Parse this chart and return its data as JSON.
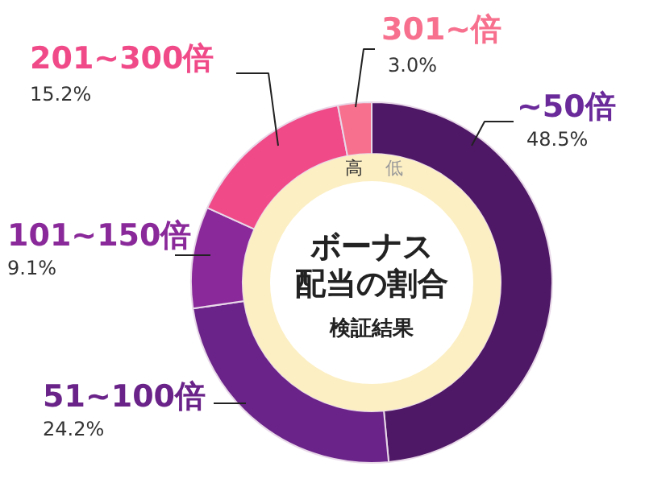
{
  "chart_data": {
    "type": "donut",
    "title": "ボーナス配当の割合",
    "subtitle": "検証結果",
    "categories": [
      "~50倍",
      "51~100倍",
      "101~150倍",
      "201~300倍",
      "301~倍"
    ],
    "values": [
      48.5,
      24.2,
      9.1,
      15.2,
      3.0
    ],
    "value_labels": [
      "48.5%",
      "24.2%",
      "9.1%",
      "15.2%",
      "3.0%"
    ],
    "colors": [
      "#4e1866",
      "#6a2389",
      "#8a2a9a",
      "#f04a88",
      "#f7708e"
    ],
    "annotations": [
      "高",
      "低"
    ]
  }
}
